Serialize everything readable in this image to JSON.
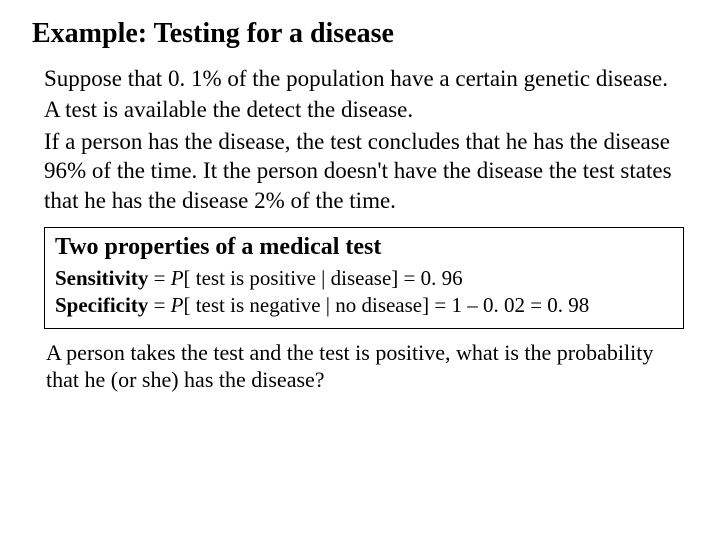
{
  "title": "Example: Testing for a disease",
  "para1": "Suppose that 0. 1% of the population have a certain genetic disease.",
  "para2": "A test is available the detect the disease.",
  "para3": "If a person has the disease, the test concludes that he has the disease 96% of the time. It the person doesn't have the disease the test states that he has the disease 2% of the time.",
  "box": {
    "title": "Two properties of a medical test",
    "sens_label": "Sensitivity",
    "sens_eq_prefix": " = ",
    "sens_P": "P",
    "sens_cond": "[ test is positive | disease] = 0. 96",
    "spec_label": "Specificity",
    "spec_eq_prefix": " = ",
    "spec_P": "P",
    "spec_cond": "[ test is negative | no disease] = 1 – 0. 02 = 0. 98"
  },
  "closing": "A person takes the test and the test is positive, what is the probability that he (or she) has the disease?"
}
